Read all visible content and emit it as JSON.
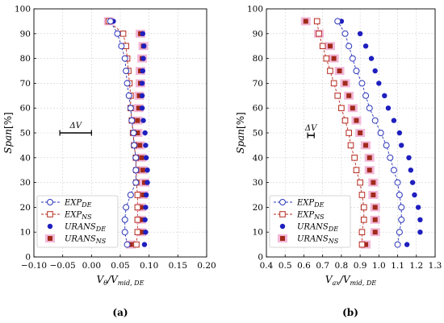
{
  "chart_data": [
    {
      "type": "scatter",
      "panel_label": "(a)",
      "xlabel_main": "V",
      "xlabel_sub_main": "θ",
      "xlabel_mid": "/V",
      "xlabel_sub_mid": "mid, DE",
      "ylabel_main": "Span",
      "ylabel_tail": "[%]",
      "xlim": [
        -0.1,
        0.2
      ],
      "ylim": [
        0,
        100
      ],
      "xticks": [
        "−0.10",
        "−0.05",
        "0.00",
        "0.05",
        "0.10",
        "0.15",
        "0.20"
      ],
      "xtick_values": [
        -0.1,
        -0.05,
        0.0,
        0.05,
        0.1,
        0.15,
        0.2
      ],
      "yticks": [
        "0",
        "10",
        "20",
        "30",
        "40",
        "50",
        "60",
        "70",
        "80",
        "90",
        "100"
      ],
      "ytick_values": [
        0,
        10,
        20,
        30,
        40,
        50,
        60,
        70,
        80,
        90,
        100
      ],
      "annotation": {
        "label": "ΔV",
        "x1": -0.055,
        "x2": 0.0,
        "y": 50
      },
      "series": [
        {
          "key": "exp_de",
          "x": [
            0.062,
            0.058,
            0.058,
            0.06,
            0.068,
            0.077,
            0.077,
            0.077,
            0.074,
            0.073,
            0.07,
            0.068,
            0.065,
            0.062,
            0.06,
            0.058,
            0.052,
            0.045,
            0.033
          ],
          "y": [
            5,
            10,
            15,
            20,
            25,
            30,
            35,
            40,
            45,
            50,
            55,
            60,
            65,
            70,
            75,
            80,
            85,
            90,
            95
          ]
        },
        {
          "key": "exp_ns",
          "x": [
            0.078,
            0.08,
            0.08,
            0.08,
            0.08,
            0.078,
            0.078,
            0.077,
            0.074,
            0.072,
            0.07,
            0.068,
            0.068,
            0.066,
            0.064,
            0.062,
            0.06,
            0.055,
            0.03
          ],
          "y": [
            5,
            10,
            15,
            20,
            25,
            30,
            35,
            40,
            45,
            50,
            55,
            60,
            65,
            70,
            75,
            80,
            85,
            90,
            95
          ]
        },
        {
          "key": "urans_de",
          "x": [
            0.092,
            0.094,
            0.093,
            0.094,
            0.095,
            0.097,
            0.097,
            0.095,
            0.094,
            0.093,
            0.09,
            0.088,
            0.088,
            0.088,
            0.089,
            0.09,
            0.091,
            0.089,
            0.038
          ],
          "y": [
            5,
            10,
            15,
            20,
            25,
            30,
            35,
            40,
            45,
            50,
            55,
            60,
            65,
            70,
            75,
            80,
            85,
            90,
            95
          ]
        },
        {
          "key": "urans_ns",
          "x": [
            0.068,
            0.087,
            0.086,
            0.086,
            0.09,
            0.092,
            0.089,
            0.087,
            0.084,
            0.08,
            0.08,
            0.082,
            0.083,
            0.085,
            0.085,
            0.088,
            0.09,
            0.085,
            0.03
          ],
          "y": [
            5,
            10,
            15,
            20,
            25,
            30,
            35,
            40,
            45,
            50,
            55,
            60,
            65,
            70,
            75,
            80,
            85,
            90,
            95
          ]
        }
      ]
    },
    {
      "type": "scatter",
      "panel_label": "(b)",
      "xlabel_main": "V",
      "xlabel_sub_main": "ax",
      "xlabel_mid": "/V",
      "xlabel_sub_mid": "mid, DE",
      "ylabel_main": "Span",
      "ylabel_tail": "[%]",
      "xlim": [
        0.4,
        1.3
      ],
      "ylim": [
        0,
        100
      ],
      "xticks": [
        "0.4",
        "0.5",
        "0.6",
        "0.7",
        "0.8",
        "0.9",
        "1.0",
        "1.1",
        "1.2",
        "1.3"
      ],
      "xtick_values": [
        0.4,
        0.5,
        0.6,
        0.7,
        0.8,
        0.9,
        1.0,
        1.1,
        1.2,
        1.3
      ],
      "yticks": [
        "0",
        "10",
        "20",
        "30",
        "40",
        "50",
        "60",
        "70",
        "80",
        "90",
        "100"
      ],
      "ytick_values": [
        0,
        10,
        20,
        30,
        40,
        50,
        60,
        70,
        80,
        90,
        100
      ],
      "annotation": {
        "label": "ΔV",
        "x1": 0.62,
        "x2": 0.655,
        "y": 49
      },
      "series": [
        {
          "key": "exp_de",
          "x": [
            1.1,
            1.11,
            1.12,
            1.12,
            1.11,
            1.1,
            1.08,
            1.06,
            1.04,
            1.01,
            0.98,
            0.95,
            0.93,
            0.91,
            0.88,
            0.86,
            0.84,
            0.82,
            0.78
          ],
          "y": [
            5,
            10,
            15,
            20,
            25,
            30,
            35,
            40,
            45,
            50,
            55,
            60,
            65,
            70,
            75,
            80,
            85,
            90,
            95
          ]
        },
        {
          "key": "exp_ns",
          "x": [
            0.91,
            0.91,
            0.92,
            0.92,
            0.91,
            0.9,
            0.88,
            0.87,
            0.85,
            0.84,
            0.82,
            0.8,
            0.78,
            0.76,
            0.74,
            0.72,
            0.7,
            0.68,
            0.67
          ],
          "y": [
            5,
            10,
            15,
            20,
            25,
            30,
            35,
            40,
            45,
            50,
            55,
            60,
            65,
            70,
            75,
            80,
            85,
            90,
            95
          ]
        },
        {
          "key": "urans_de",
          "x": [
            1.15,
            1.22,
            1.22,
            1.21,
            1.19,
            1.18,
            1.17,
            1.16,
            1.12,
            1.11,
            1.08,
            1.05,
            1.03,
            1.0,
            0.98,
            0.96,
            0.93,
            0.9,
            0.8
          ],
          "y": [
            5,
            10,
            15,
            20,
            25,
            30,
            35,
            40,
            45,
            50,
            55,
            60,
            65,
            70,
            75,
            80,
            85,
            90,
            95
          ]
        },
        {
          "key": "urans_ns",
          "x": [
            0.93,
            0.98,
            0.98,
            0.98,
            0.97,
            0.97,
            0.95,
            0.95,
            0.93,
            0.9,
            0.88,
            0.86,
            0.84,
            0.82,
            0.79,
            0.76,
            0.74,
            0.68,
            0.61
          ],
          "y": [
            5,
            10,
            15,
            20,
            25,
            30,
            35,
            40,
            45,
            50,
            55,
            60,
            65,
            70,
            75,
            80,
            85,
            90,
            95
          ]
        }
      ]
    }
  ],
  "legend": {
    "placement": "bottom-left",
    "entries": [
      {
        "key": "exp_de",
        "main": "EXP",
        "sub": "DE",
        "marker": "open-circle",
        "color": "#2b35b8",
        "line": "dashed"
      },
      {
        "key": "exp_ns",
        "main": "EXP",
        "sub": "NS",
        "marker": "open-square",
        "color": "#b52a1e",
        "line": "dashed"
      },
      {
        "key": "urans_de",
        "main": "URANS",
        "sub": "DE",
        "marker": "filled-circle",
        "color": "#1f1fbf",
        "line": "none"
      },
      {
        "key": "urans_ns",
        "main": "URANS",
        "sub": "NS",
        "marker": "filled-square",
        "color": "#a12a1b",
        "line": "none"
      }
    ]
  },
  "colors": {
    "exp_de": "#2b35b8",
    "exp_ns": "#b52a1e",
    "urans_de": "#1f1fbf",
    "urans_ns": "#a12a1b",
    "urans_ns_halo": "#f2b8d8"
  }
}
